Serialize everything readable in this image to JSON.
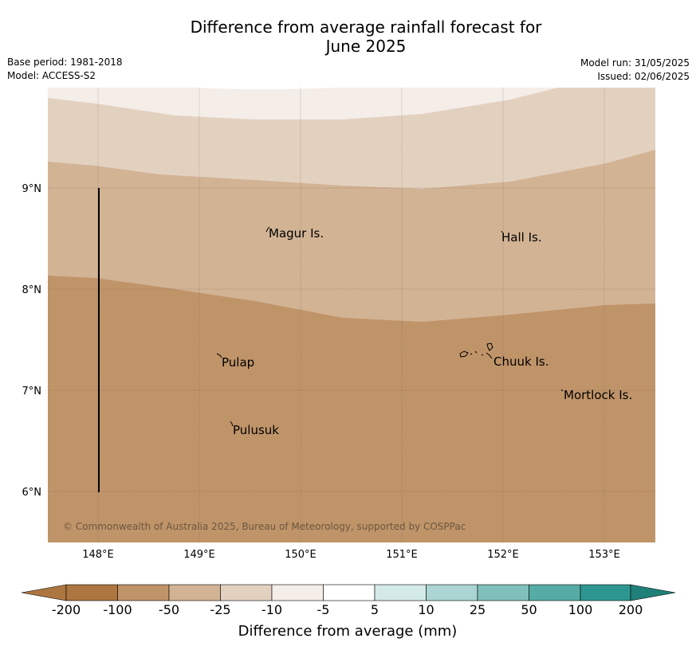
{
  "title": {
    "line1": "Difference from average rainfall forecast for",
    "line2": "June 2025"
  },
  "meta_left": {
    "base_period": "Base period: 1981-2018",
    "model": "Model: ACCESS-S2"
  },
  "meta_right": {
    "model_run": "Model run: 31/05/2025",
    "issued": "Issued: 02/06/2025"
  },
  "map": {
    "lat_labels": [
      "9°N",
      "8°N",
      "7°N",
      "6°N"
    ],
    "lon_labels": [
      "148°E",
      "149°E",
      "150°E",
      "151°E",
      "152°E",
      "153°E"
    ],
    "places": [
      "Magur Is.",
      "Hall Is.",
      "Pulap",
      "Chuuk Is.",
      "Mortlock Is.",
      "Pulusuk"
    ],
    "copyright": "© Commonwealth of Australia 2025, Bureau of Meteorology, supported by COSPPac",
    "colors": {
      "neg200": "#ad7640",
      "neg100": "#c09469",
      "neg50": "#d2b394",
      "neg25": "#e3d1c0",
      "neg10": "#f4ede8",
      "zero": "#ffffff",
      "pos5": "#d4eae8",
      "pos10": "#aad5d2",
      "pos25": "#80c0bc",
      "pos50": "#56aba6",
      "pos100": "#2e9690"
    }
  },
  "colorbar": {
    "ticks": [
      "-200",
      "-100",
      "-50",
      "-25",
      "-10",
      "-5",
      "5",
      "10",
      "25",
      "50",
      "100",
      "200"
    ],
    "label": "Difference from average (mm)"
  }
}
